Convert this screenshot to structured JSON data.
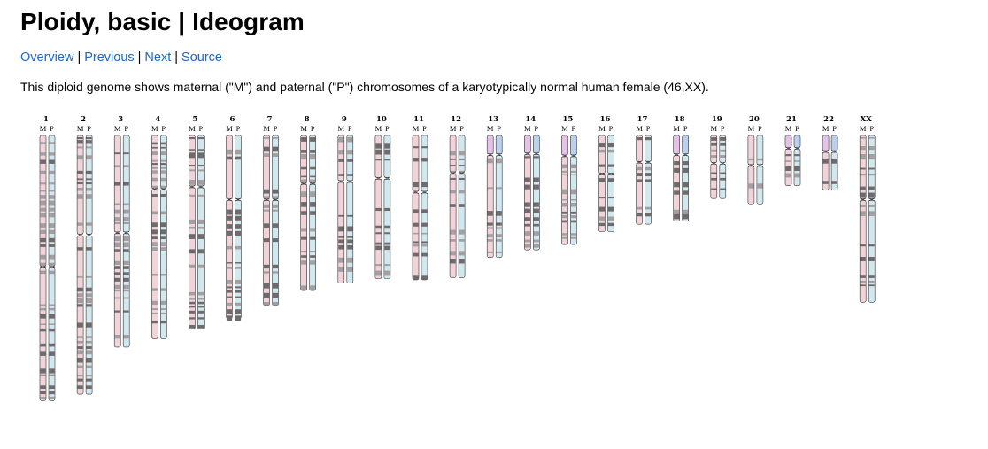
{
  "page": {
    "title": "Ploidy, basic | Ideogram",
    "description": "This diploid genome shows maternal (\"M\") and paternal (\"P\") chromosomes of a karyotypically normal human female (46,XX)."
  },
  "nav": {
    "overview": "Overview",
    "previous": "Previous",
    "next": "Next",
    "source": "Source",
    "separator": "|"
  },
  "colors": {
    "maternal": "#f3d3da",
    "paternal": "#d2e8ef",
    "acrocentric_maternal_p": "#e6c2e8",
    "acrocentric_paternal_p": "#bcd0ee",
    "band_dark": "#6f6a6c",
    "band_mid": "#a39ea0",
    "outline": "#333333",
    "link": "#1a67c4"
  },
  "chart_data": {
    "type": "ideogram",
    "homolog_labels": [
      "M",
      "P"
    ],
    "chromosomes": [
      {
        "name": "1",
        "length": 248,
        "centromere": 123
      },
      {
        "name": "2",
        "length": 242,
        "centromere": 93
      },
      {
        "name": "3",
        "length": 198,
        "centromere": 91
      },
      {
        "name": "4",
        "length": 190,
        "centromere": 50
      },
      {
        "name": "5",
        "length": 181,
        "centromere": 48
      },
      {
        "name": "6",
        "length": 171,
        "centromere": 60
      },
      {
        "name": "7",
        "length": 159,
        "centromere": 60
      },
      {
        "name": "8",
        "length": 145,
        "centromere": 45
      },
      {
        "name": "9",
        "length": 138,
        "centromere": 43
      },
      {
        "name": "10",
        "length": 134,
        "centromere": 40
      },
      {
        "name": "11",
        "length": 135,
        "centromere": 53
      },
      {
        "name": "12",
        "length": 133,
        "centromere": 35
      },
      {
        "name": "13",
        "length": 114,
        "centromere": 18
      },
      {
        "name": "14",
        "length": 107,
        "centromere": 17
      },
      {
        "name": "15",
        "length": 102,
        "centromere": 19
      },
      {
        "name": "16",
        "length": 90,
        "centromere": 36
      },
      {
        "name": "17",
        "length": 83,
        "centromere": 25
      },
      {
        "name": "18",
        "length": 80,
        "centromere": 18
      },
      {
        "name": "19",
        "length": 59,
        "centromere": 26
      },
      {
        "name": "20",
        "length": 64,
        "centromere": 28
      },
      {
        "name": "21",
        "length": 47,
        "centromere": 12
      },
      {
        "name": "22",
        "length": 51,
        "centromere": 15
      },
      {
        "name": "XX",
        "length": 156,
        "centromere": 60
      }
    ]
  }
}
